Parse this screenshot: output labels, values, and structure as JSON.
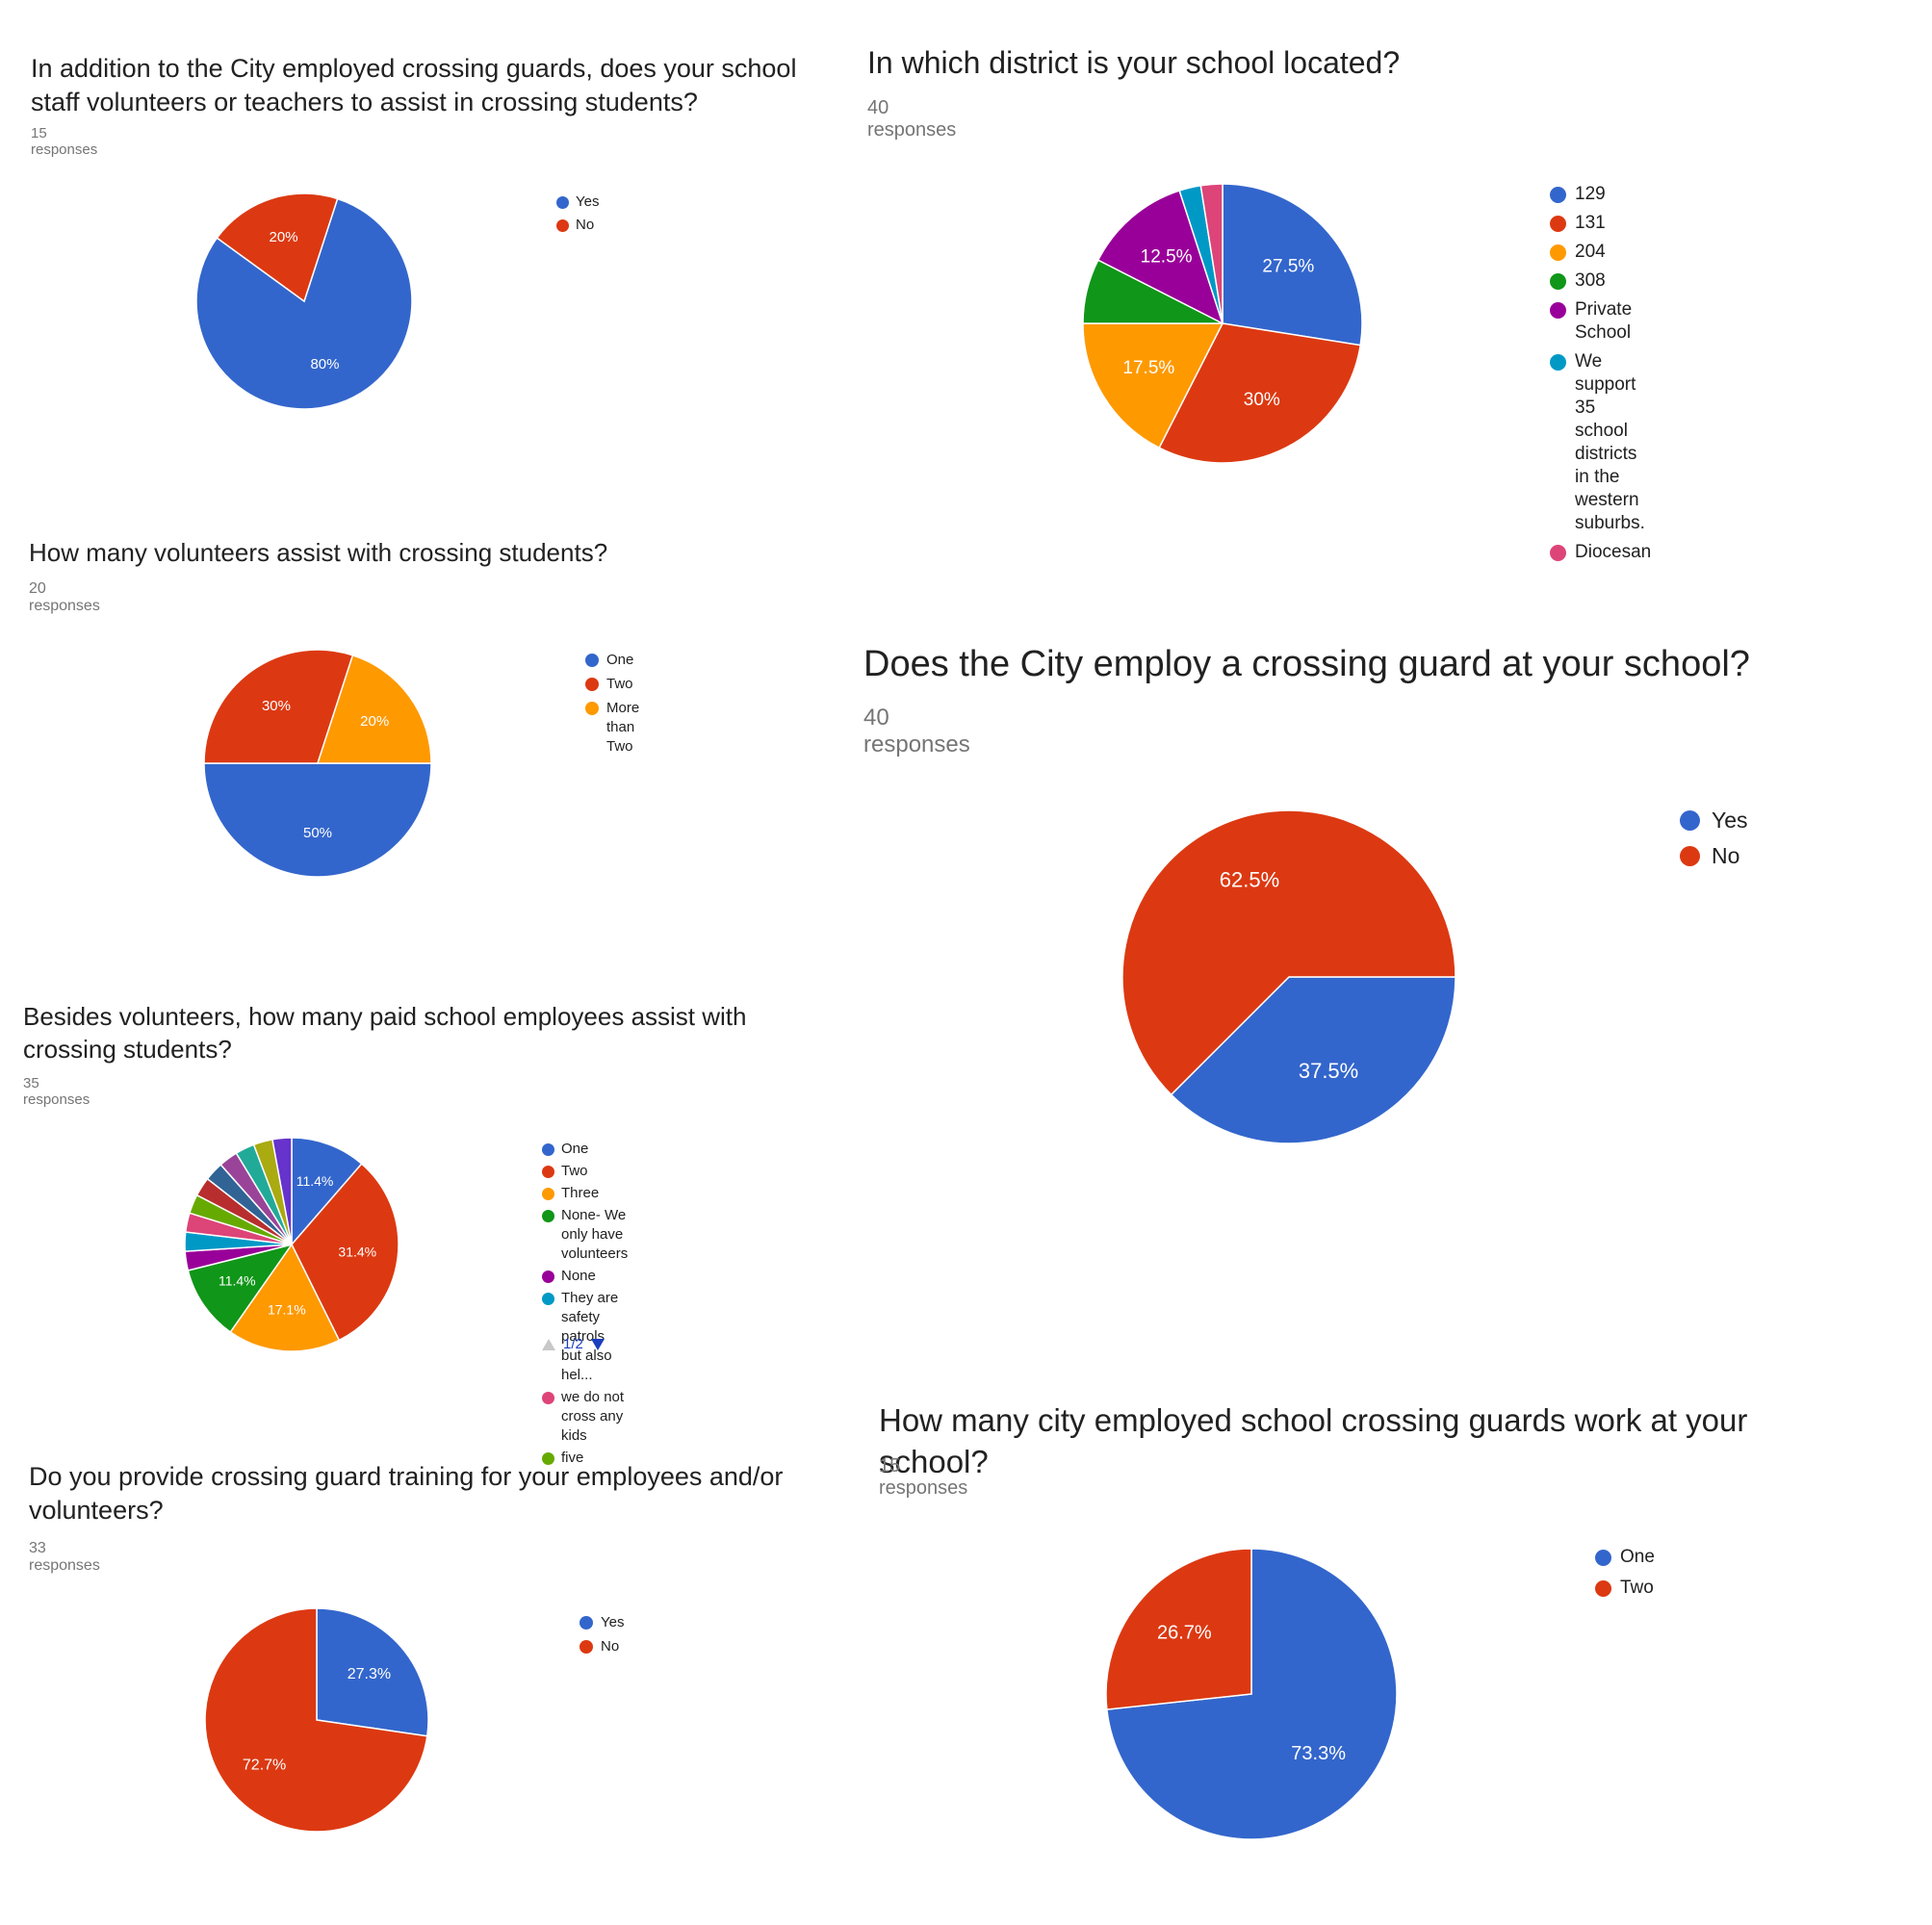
{
  "colors": {
    "blue": "#3366cc",
    "red": "#dc3912",
    "orange": "#ff9900",
    "green": "#109618",
    "purple": "#990099",
    "teal": "#0099c6",
    "pink": "#dd4477",
    "lime": "#66aa00",
    "crimson": "#b82e2e",
    "navy": "#316395",
    "violet": "#994499",
    "seagreen": "#22aa99",
    "olive": "#aaaa11",
    "indigo": "#6633cc"
  },
  "pager": {
    "text": "1/2"
  },
  "chart_data": [
    {
      "type": "pie",
      "title": "In addition to the City employed crossing guards, does your school staff volunteers or teachers to assist in crossing students?",
      "responses": "15 responses",
      "slices": [
        {
          "label": "Yes",
          "value": 80,
          "color": "#3366cc",
          "text": "80%"
        },
        {
          "label": "No",
          "value": 20,
          "color": "#dc3912",
          "text": "20%"
        }
      ]
    },
    {
      "type": "pie",
      "title": "In which district is your school located?",
      "responses": "40 responses",
      "slices": [
        {
          "label": "129",
          "value": 27.5,
          "color": "#3366cc",
          "text": "27.5%"
        },
        {
          "label": "131",
          "value": 30,
          "color": "#dc3912",
          "text": "30%"
        },
        {
          "label": "204",
          "value": 17.5,
          "color": "#ff9900",
          "text": "17.5%"
        },
        {
          "label": "308",
          "value": 7.5,
          "color": "#109618",
          "text": ""
        },
        {
          "label": "Private School",
          "value": 12.5,
          "color": "#990099",
          "text": "12.5%"
        },
        {
          "label": "We support 35 school districts in the western suburbs.",
          "value": 2.5,
          "color": "#0099c6",
          "text": ""
        },
        {
          "label": "Diocesan",
          "value": 2.5,
          "color": "#dd4477",
          "text": ""
        }
      ]
    },
    {
      "type": "pie",
      "title": "How many volunteers assist with crossing students?",
      "responses": "20 responses",
      "slices": [
        {
          "label": "One",
          "value": 50,
          "color": "#3366cc",
          "text": "50%"
        },
        {
          "label": "Two",
          "value": 30,
          "color": "#dc3912",
          "text": "30%"
        },
        {
          "label": "More than Two",
          "value": 20,
          "color": "#ff9900",
          "text": "20%"
        }
      ]
    },
    {
      "type": "pie",
      "title": "Does the City employ a crossing guard at your school?",
      "responses": "40 responses",
      "slices": [
        {
          "label": "Yes",
          "value": 37.5,
          "color": "#3366cc",
          "text": "37.5%"
        },
        {
          "label": "No",
          "value": 62.5,
          "color": "#dc3912",
          "text": "62.5%"
        }
      ]
    },
    {
      "type": "pie",
      "title": "Besides volunteers, how many paid school employees assist with crossing students?",
      "responses": "35 responses",
      "slices": [
        {
          "label": "One",
          "value": 11.4,
          "color": "#3366cc",
          "text": "11.4%"
        },
        {
          "label": "Two",
          "value": 31.4,
          "color": "#dc3912",
          "text": "31.4%"
        },
        {
          "label": "Three",
          "value": 17.1,
          "color": "#ff9900",
          "text": "17.1%"
        },
        {
          "label": "None- We only have volunteers",
          "value": 11.4,
          "color": "#109618",
          "text": "11.4%"
        },
        {
          "label": "None",
          "value": 2.9,
          "color": "#990099",
          "text": ""
        },
        {
          "label": "They are safety patrols but also hel...",
          "value": 2.9,
          "color": "#0099c6",
          "text": ""
        },
        {
          "label": "we do not cross any kids",
          "value": 2.9,
          "color": "#dd4477",
          "text": ""
        },
        {
          "label": "five",
          "value": 2.9,
          "color": "#66aa00",
          "text": ""
        },
        {
          "label": "",
          "value": 2.9,
          "color": "#b82e2e",
          "text": "",
          "legend": false
        },
        {
          "label": "",
          "value": 2.9,
          "color": "#316395",
          "text": "",
          "legend": false
        },
        {
          "label": "",
          "value": 2.9,
          "color": "#994499",
          "text": "",
          "legend": false
        },
        {
          "label": "",
          "value": 2.9,
          "color": "#22aa99",
          "text": "",
          "legend": false
        },
        {
          "label": "",
          "value": 2.9,
          "color": "#aaaa11",
          "text": "",
          "legend": false
        },
        {
          "label": "",
          "value": 2.9,
          "color": "#6633cc",
          "text": "",
          "legend": false
        }
      ]
    },
    {
      "type": "pie",
      "title": "How many city employed school crossing guards work at your school?",
      "responses": "15 responses",
      "slices": [
        {
          "label": "One",
          "value": 73.3,
          "color": "#3366cc",
          "text": "73.3%"
        },
        {
          "label": "Two",
          "value": 26.7,
          "color": "#dc3912",
          "text": "26.7%"
        }
      ]
    },
    {
      "type": "pie",
      "title": "Do you provide crossing guard training for your employees and/or volunteers?",
      "responses": "33 responses",
      "slices": [
        {
          "label": "Yes",
          "value": 27.3,
          "color": "#3366cc",
          "text": "27.3%"
        },
        {
          "label": "No",
          "value": 72.7,
          "color": "#dc3912",
          "text": "72.7%"
        }
      ]
    }
  ]
}
